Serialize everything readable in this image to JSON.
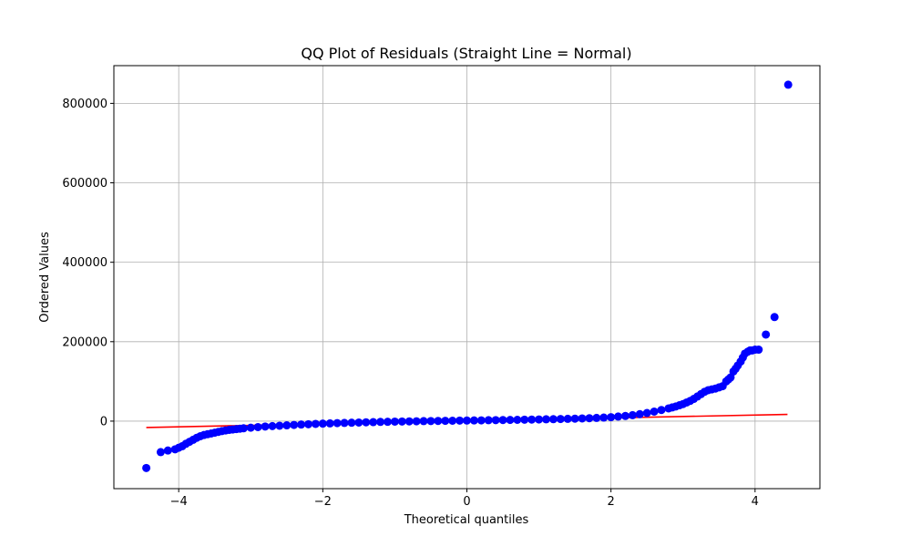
{
  "chart_data": {
    "type": "scatter",
    "title": "QQ Plot of Residuals (Straight Line = Normal)",
    "xlabel": "Theoretical quantiles",
    "ylabel": "Ordered Values",
    "xlim": [
      -4.9,
      4.9
    ],
    "ylim": [
      -170000,
      895000
    ],
    "x_ticks": [
      -4,
      -2,
      0,
      2,
      4
    ],
    "x_tick_labels": [
      "−4",
      "−2",
      "0",
      "2",
      "4"
    ],
    "y_ticks": [
      0,
      200000,
      400000,
      600000,
      800000
    ],
    "y_tick_labels": [
      "0",
      "200000",
      "400000",
      "600000",
      "800000"
    ],
    "grid": true,
    "colors": {
      "points": "#0000ff",
      "fit_line": "#ff0000",
      "grid": "#b0b0b0"
    },
    "fit_line": {
      "x": [
        -4.45,
        4.45
      ],
      "y": [
        -16000,
        17000
      ]
    },
    "points": {
      "x": [
        -4.45,
        -4.25,
        -4.15,
        -4.05,
        -4.0,
        -3.95,
        -3.9,
        -3.85,
        -3.8,
        -3.75,
        -3.7,
        -3.65,
        -3.6,
        -3.55,
        -3.5,
        -3.45,
        -3.4,
        -3.35,
        -3.3,
        -3.25,
        -3.2,
        -3.15,
        -3.1,
        -3.0,
        -2.9,
        -2.8,
        -2.7,
        -2.6,
        -2.5,
        -2.4,
        -2.3,
        -2.2,
        -2.1,
        -2.0,
        -1.9,
        -1.8,
        -1.7,
        -1.6,
        -1.5,
        -1.4,
        -1.3,
        -1.2,
        -1.1,
        -1.0,
        -0.9,
        -0.8,
        -0.7,
        -0.6,
        -0.5,
        -0.4,
        -0.3,
        -0.2,
        -0.1,
        0.0,
        0.1,
        0.2,
        0.3,
        0.4,
        0.5,
        0.6,
        0.7,
        0.8,
        0.9,
        1.0,
        1.1,
        1.2,
        1.3,
        1.4,
        1.5,
        1.6,
        1.7,
        1.8,
        1.9,
        2.0,
        2.1,
        2.2,
        2.3,
        2.4,
        2.5,
        2.6,
        2.7,
        2.8,
        2.85,
        2.9,
        2.95,
        3.0,
        3.05,
        3.1,
        3.15,
        3.2,
        3.25,
        3.3,
        3.35,
        3.4,
        3.45,
        3.5,
        3.55,
        3.6,
        3.63,
        3.66,
        3.7,
        3.73,
        3.76,
        3.8,
        3.83,
        3.86,
        3.9,
        3.93,
        3.96,
        4.0,
        4.05,
        4.15,
        4.27,
        4.46
      ],
      "y": [
        -118000,
        -78000,
        -74000,
        -71000,
        -67000,
        -63000,
        -57000,
        -52000,
        -47000,
        -42000,
        -38000,
        -35000,
        -33000,
        -31000,
        -29000,
        -27000,
        -25000,
        -23500,
        -22000,
        -21000,
        -20000,
        -19000,
        -18000,
        -16500,
        -15000,
        -13500,
        -12500,
        -11500,
        -10500,
        -9500,
        -8500,
        -7800,
        -7000,
        -6300,
        -5700,
        -5000,
        -4500,
        -4000,
        -3500,
        -3000,
        -2500,
        -2000,
        -1600,
        -1200,
        -900,
        -600,
        -300,
        0,
        200,
        500,
        800,
        1000,
        1300,
        1500,
        1800,
        2000,
        2300,
        2500,
        2800,
        3000,
        3300,
        3600,
        3900,
        4200,
        4600,
        5000,
        5400,
        5800,
        6300,
        6800,
        7400,
        8100,
        9000,
        10000,
        11500,
        13000,
        15000,
        17500,
        20500,
        24000,
        28000,
        32000,
        34500,
        37000,
        40000,
        43000,
        47000,
        51000,
        56000,
        62000,
        68000,
        74000,
        78000,
        80000,
        82000,
        85000,
        88000,
        100000,
        105000,
        110000,
        125000,
        132000,
        140000,
        150000,
        160000,
        170000,
        175000,
        178000,
        178000,
        180000,
        180000,
        218000,
        262000,
        847000
      ]
    }
  }
}
